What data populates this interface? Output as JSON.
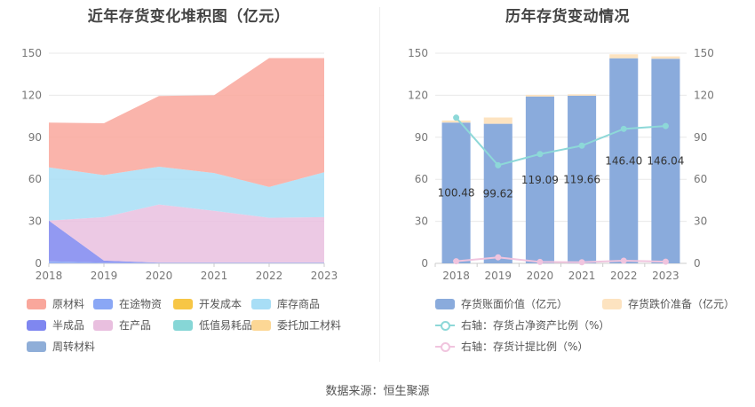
{
  "left_chart": {
    "title": "近年存货变化堆积图（亿元）",
    "legend": [
      {
        "label": "原材料",
        "color": "#f9a79c"
      },
      {
        "label": "在途物资",
        "color": "#8aa7f5"
      },
      {
        "label": "开发成本",
        "color": "#f7c646"
      },
      {
        "label": "库存商品",
        "color": "#a8def6"
      },
      {
        "label": "半成品",
        "color": "#7f87f0"
      },
      {
        "label": "在产品",
        "color": "#e9bfdf"
      },
      {
        "label": "低值易耗品",
        "color": "#86d6d6"
      },
      {
        "label": "委托加工材料",
        "color": "#fcd795"
      },
      {
        "label": "周转材料",
        "color": "#8faed8"
      }
    ]
  },
  "right_chart": {
    "title": "历年存货变动情况",
    "legend": [
      {
        "label": "存货账面价值（亿元）",
        "color": "#8aabdc",
        "kind": "bar"
      },
      {
        "label": "存货跌价准备（亿元）",
        "color": "#fde3c0",
        "kind": "bar"
      },
      {
        "label": "右轴：存货占净资产比例（%）",
        "color": "#8dd8d8",
        "kind": "line"
      },
      {
        "label": "右轴：存货计提比例（%）",
        "color": "#f0c4de",
        "kind": "line"
      }
    ]
  },
  "source": "数据来源：恒生聚源",
  "chart_data": [
    {
      "type": "area",
      "title": "近年存货变化堆积图（亿元）",
      "categories": [
        "2018",
        "2019",
        "2020",
        "2021",
        "2022",
        "2023"
      ],
      "ylim": [
        0,
        150
      ],
      "yticks": [
        0,
        30,
        60,
        90,
        120,
        150
      ],
      "series": [
        {
          "name": "在途物资",
          "color": "#8aa7f5",
          "values": [
            1.5,
            0.5,
            0.5,
            0.5,
            0.5,
            0.5
          ]
        },
        {
          "name": "半成品",
          "color": "#7f87f0",
          "values": [
            29,
            1.5,
            0,
            0,
            0,
            0
          ]
        },
        {
          "name": "在产品",
          "color": "#e9bfdf",
          "values": [
            0,
            31,
            41.5,
            37,
            32,
            32.5
          ]
        },
        {
          "name": "库存商品",
          "color": "#a8def6",
          "values": [
            38,
            30,
            27,
            27,
            22,
            32
          ]
        },
        {
          "name": "原材料",
          "color": "#f9a79c",
          "values": [
            32,
            37,
            50.5,
            55.5,
            92,
            81.5
          ]
        }
      ]
    },
    {
      "type": "bar",
      "title": "历年存货变动情况",
      "categories": [
        "2018",
        "2019",
        "2020",
        "2021",
        "2022",
        "2023"
      ],
      "ylim": [
        0,
        150
      ],
      "yticks": [
        0,
        30,
        60,
        90,
        120,
        150
      ],
      "y2lim": [
        0,
        150
      ],
      "y2ticks": [
        0,
        30,
        60,
        90,
        120,
        150
      ],
      "series": [
        {
          "name": "存货账面价值（亿元）",
          "color": "#8aabdc",
          "values": [
            100.48,
            99.62,
            119.09,
            119.66,
            146.4,
            146.04
          ],
          "labels": [
            "100.48",
            "99.62",
            "119.09",
            "119.66",
            "146.40",
            "146.04"
          ]
        },
        {
          "name": "存货跌价准备（亿元）",
          "color": "#fde3c0",
          "values": [
            1.5,
            4.5,
            1.2,
            1.0,
            2.8,
            1.7
          ]
        },
        {
          "name": "右轴：存货占净资产比例（%）",
          "color": "#8dd8d8",
          "axis": "right",
          "values": [
            104,
            70,
            78,
            84,
            96,
            98
          ]
        },
        {
          "name": "右轴：存货计提比例（%）",
          "color": "#f0c4de",
          "axis": "right",
          "values": [
            1.5,
            4.3,
            1.0,
            0.8,
            1.9,
            1.2
          ]
        }
      ]
    }
  ]
}
